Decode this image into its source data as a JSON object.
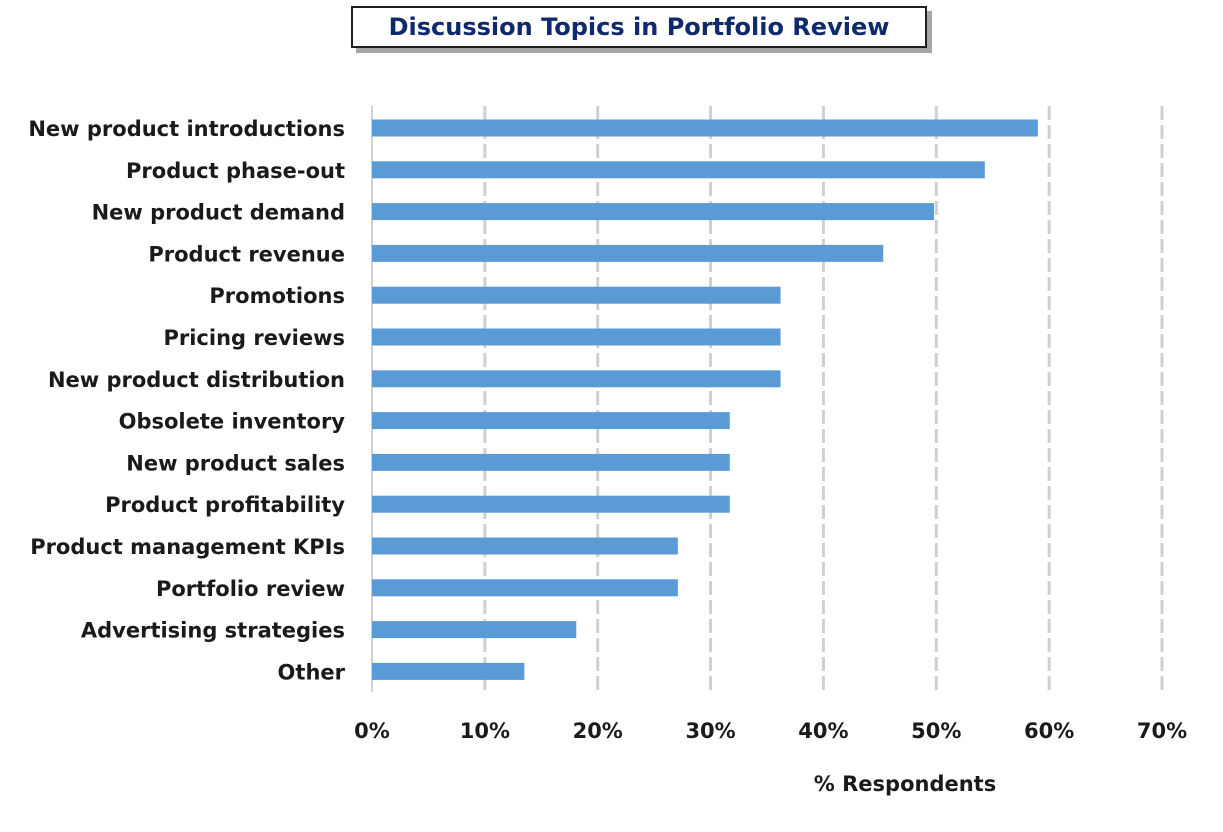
{
  "chart_data": {
    "type": "bar",
    "orientation": "horizontal",
    "title": "Discussion Topics in Portfolio Review",
    "xlabel": "% Respondents",
    "ylabel": "",
    "xlim": [
      0,
      70
    ],
    "x_ticks": [
      "0%",
      "10%",
      "20%",
      "30%",
      "40%",
      "50%",
      "60%",
      "70%"
    ],
    "grid": true,
    "bar_color": "#5b9bd5",
    "title_color": "#0f2a6b",
    "categories": [
      "New product introductions",
      "Product phase-out",
      "New product demand",
      "Product revenue",
      "Promotions",
      "Pricing reviews",
      "New product distribution",
      "Obsolete inventory",
      "New product sales",
      "Product profitability",
      "Product management KPIs",
      "Portfolio review",
      "Advertising strategies",
      "Other"
    ],
    "values": [
      59,
      54.3,
      49.8,
      45.3,
      36.2,
      36.2,
      36.2,
      31.7,
      31.7,
      31.7,
      27.1,
      27.1,
      18.1,
      13.5
    ]
  }
}
